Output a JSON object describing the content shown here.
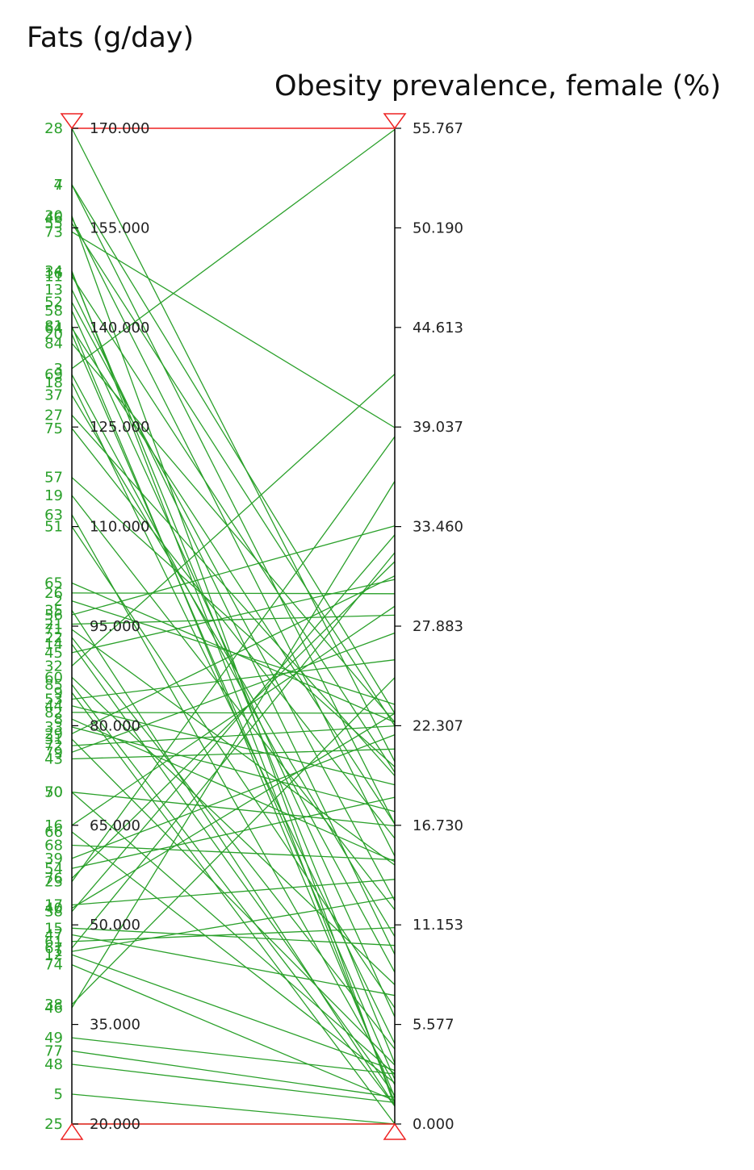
{
  "chart_data": {
    "type": "parallel-coordinates",
    "axes": [
      {
        "title": "Fats (g/day)",
        "ylim": [
          20,
          170
        ],
        "ticks": [
          "170.000",
          "155.000",
          "140.000",
          "125.000",
          "110.000",
          "95.000",
          "80.000",
          "65.000",
          "50.000",
          "35.000",
          "20.000"
        ]
      },
      {
        "title": "Obesity prevalence, female (%)",
        "ylim": [
          0,
          55.767
        ],
        "ticks": [
          "55.767",
          "50.190",
          "44.613",
          "39.037",
          "33.460",
          "27.883",
          "22.307",
          "16.730",
          "11.153",
          "5.577",
          "0.000"
        ]
      }
    ],
    "colors": {
      "line": "#2aa02a",
      "range": "#ee2222",
      "axis": "#000000",
      "label": "#2aa02a"
    },
    "rows": [
      {
        "label": "28",
        "fat": 170.0,
        "obesity": 20.3
      },
      {
        "label": "4",
        "fat": 161.5,
        "obesity": 23.0
      },
      {
        "label": "7",
        "fat": 161.5,
        "obesity": 16.8
      },
      {
        "label": "30",
        "fat": 156.8,
        "obesity": 1.0
      },
      {
        "label": "46",
        "fat": 156.5,
        "obesity": 15.0
      },
      {
        "label": "55",
        "fat": 155.7,
        "obesity": 22.3
      },
      {
        "label": "73",
        "fat": 154.4,
        "obesity": 39.0
      },
      {
        "label": "34",
        "fat": 148.5,
        "obesity": 1.2
      },
      {
        "label": "16",
        "fat": 148.2,
        "obesity": 3.4
      },
      {
        "label": "11",
        "fat": 147.7,
        "obesity": 19.7
      },
      {
        "label": "13",
        "fat": 145.7,
        "obesity": 9.5
      },
      {
        "label": "52",
        "fat": 143.8,
        "obesity": 12.5
      },
      {
        "label": "58",
        "fat": 142.5,
        "obesity": 6.0
      },
      {
        "label": "81",
        "fat": 140.2,
        "obesity": 1.5
      },
      {
        "label": "64",
        "fat": 139.9,
        "obesity": 16.8
      },
      {
        "label": "20",
        "fat": 139.0,
        "obesity": 2.5
      },
      {
        "label": "84",
        "fat": 137.6,
        "obesity": 22.5
      },
      {
        "label": "3",
        "fat": 133.8,
        "obesity": 55.7
      },
      {
        "label": "69",
        "fat": 132.9,
        "obesity": 8.5
      },
      {
        "label": "18",
        "fat": 131.7,
        "obesity": 4.5
      },
      {
        "label": "37",
        "fat": 129.8,
        "obesity": 10.5
      },
      {
        "label": "27",
        "fat": 126.8,
        "obesity": 19.5
      },
      {
        "label": "75",
        "fat": 124.8,
        "obesity": 16.0
      },
      {
        "label": "57",
        "fat": 117.4,
        "obesity": 20.0
      },
      {
        "label": "19",
        "fat": 114.7,
        "obesity": 12.0
      },
      {
        "label": "63",
        "fat": 111.8,
        "obesity": 2.2
      },
      {
        "label": "51",
        "fat": 110.0,
        "obesity": 6.5
      },
      {
        "label": "65",
        "fat": 101.5,
        "obesity": 22.5
      },
      {
        "label": "26",
        "fat": 100.0,
        "obesity": 29.7
      },
      {
        "label": "2",
        "fat": 98.8,
        "obesity": 23.5
      },
      {
        "label": "35",
        "fat": 97.4,
        "obesity": 1.0
      },
      {
        "label": "56",
        "fat": 96.7,
        "obesity": 33.5
      },
      {
        "label": "21",
        "fat": 95.3,
        "obesity": 28.5
      },
      {
        "label": "71",
        "fat": 94.5,
        "obesity": 14.5
      },
      {
        "label": "22",
        "fat": 93.3,
        "obesity": 4.2
      },
      {
        "label": "14",
        "fat": 92.3,
        "obesity": 1.6
      },
      {
        "label": "45",
        "fat": 91.0,
        "obesity": 30.5
      },
      {
        "label": "32",
        "fat": 89.0,
        "obesity": 42.0
      },
      {
        "label": "60",
        "fat": 87.3,
        "obesity": 7.8
      },
      {
        "label": "85",
        "fat": 86.2,
        "obesity": 1.0
      },
      {
        "label": "9",
        "fat": 85.0,
        "obesity": 0.0
      },
      {
        "label": "53",
        "fat": 84.0,
        "obesity": 26.0
      },
      {
        "label": "44",
        "fat": 83.0,
        "obesity": 19.0
      },
      {
        "label": "82",
        "fat": 82.0,
        "obesity": 23.0
      },
      {
        "label": "8",
        "fat": 81.0,
        "obesity": 14.7
      },
      {
        "label": "33",
        "fat": 79.8,
        "obesity": 17.5
      },
      {
        "label": "29",
        "fat": 78.8,
        "obesity": 30.7
      },
      {
        "label": "31",
        "fat": 78.0,
        "obesity": 3.3
      },
      {
        "label": "72",
        "fat": 77.0,
        "obesity": 22.3
      },
      {
        "label": "79",
        "fat": 76.0,
        "obesity": 27.5
      },
      {
        "label": "43",
        "fat": 75.0,
        "obesity": 21.0
      },
      {
        "label": "70",
        "fat": 70.0,
        "obesity": 16.7
      },
      {
        "label": "50",
        "fat": 70.0,
        "obesity": 2.8
      },
      {
        "label": "16",
        "fat": 65.0,
        "obesity": 29.0
      },
      {
        "label": "66",
        "fat": 64.0,
        "obesity": 2.3
      },
      {
        "label": "68",
        "fat": 62.0,
        "obesity": 14.8
      },
      {
        "label": "39",
        "fat": 60.0,
        "obesity": 21.8
      },
      {
        "label": "54",
        "fat": 58.5,
        "obesity": 18.3
      },
      {
        "label": "76",
        "fat": 57.0,
        "obesity": 31.5
      },
      {
        "label": "23",
        "fat": 56.5,
        "obesity": 38.5
      },
      {
        "label": "17",
        "fat": 53.0,
        "obesity": 13.7
      },
      {
        "label": "40",
        "fat": 52.5,
        "obesity": 23.0
      },
      {
        "label": "38",
        "fat": 52.0,
        "obesity": 33.0
      },
      {
        "label": "15",
        "fat": 49.5,
        "obesity": 10.0
      },
      {
        "label": "47",
        "fat": 48.5,
        "obesity": 7.2
      },
      {
        "label": "61",
        "fat": 47.5,
        "obesity": 11.0
      },
      {
        "label": "67",
        "fat": 46.5,
        "obesity": 32.0
      },
      {
        "label": "1",
        "fat": 46.0,
        "obesity": 12.7
      },
      {
        "label": "12",
        "fat": 45.5,
        "obesity": 3.0
      },
      {
        "label": "74",
        "fat": 44.0,
        "obesity": 1.3
      },
      {
        "label": "38",
        "fat": 38.0,
        "obesity": 25.0
      },
      {
        "label": "46",
        "fat": 37.5,
        "obesity": 36.0
      },
      {
        "label": "49",
        "fat": 33.0,
        "obesity": 2.8
      },
      {
        "label": "77",
        "fat": 31.0,
        "obesity": 1.5
      },
      {
        "label": "48",
        "fat": 29.0,
        "obesity": 1.2
      },
      {
        "label": "5",
        "fat": 24.5,
        "obesity": 0.0
      },
      {
        "label": "25",
        "fat": 20.0,
        "obesity": 0.0
      }
    ]
  }
}
